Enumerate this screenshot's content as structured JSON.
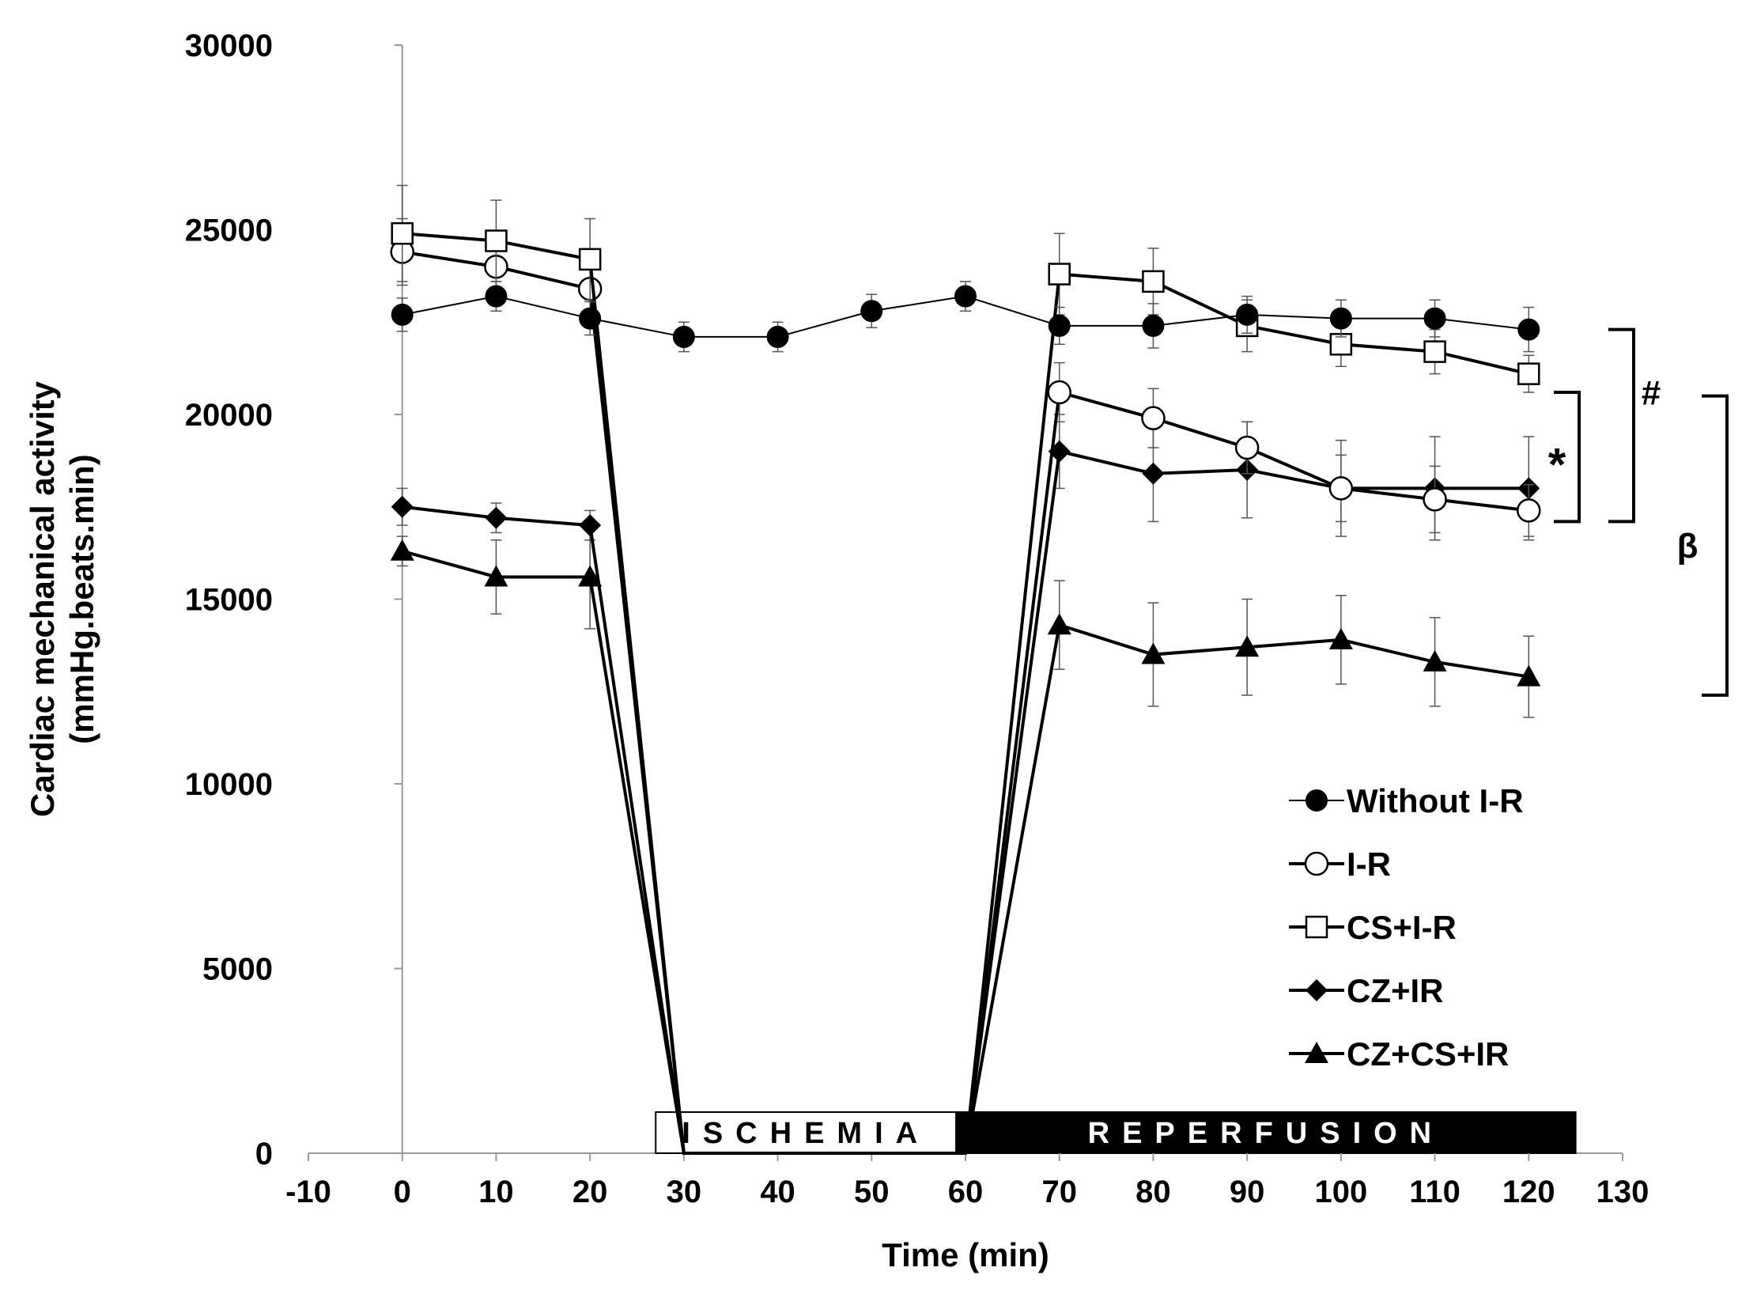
{
  "chart_data": {
    "type": "line",
    "title": "",
    "xlabel": "Time (min)",
    "ylabel_line1": "Cardiac mechanical activity",
    "ylabel_line2": "(mmHg.beats.min)",
    "xlim": [
      -10,
      130
    ],
    "ylim": [
      0,
      30000
    ],
    "xticks": [
      -10,
      0,
      10,
      20,
      30,
      40,
      50,
      60,
      70,
      80,
      90,
      100,
      110,
      120,
      130
    ],
    "yticks": [
      0,
      5000,
      10000,
      15000,
      20000,
      25000,
      30000
    ],
    "grid": false,
    "legend_position": "bottom-right",
    "phases": [
      {
        "label": "ISCHEMIA",
        "x_start": 27,
        "x_end": 59,
        "fill": "#ffffff",
        "text_color": "#000000"
      },
      {
        "label": "REPERFUSION",
        "x_start": 59,
        "x_end": 125,
        "fill": "#000000",
        "text_color": "#ffffff"
      }
    ],
    "series": [
      {
        "name": "Without I-R",
        "marker": "circle-filled",
        "stroke_width": 2,
        "x": [
          0,
          10,
          20,
          30,
          40,
          50,
          60,
          70,
          80,
          90,
          100,
          110,
          120
        ],
        "values": [
          22700,
          23200,
          22600,
          22100,
          22100,
          22800,
          23200,
          22400,
          22400,
          22700,
          22600,
          22600,
          22300
        ],
        "errors": [
          450,
          400,
          450,
          400,
          400,
          450,
          400,
          500,
          600,
          500,
          500,
          500,
          600
        ]
      },
      {
        "name": "I-R",
        "marker": "circle-open",
        "stroke_width": 4,
        "x": [
          0,
          10,
          20,
          30,
          60,
          70,
          80,
          90,
          100,
          110,
          120
        ],
        "values": [
          24400,
          24000,
          23400,
          0,
          0,
          20600,
          19900,
          19100,
          18000,
          17700,
          17400
        ],
        "errors": [
          900,
          800,
          900,
          0,
          0,
          800,
          800,
          700,
          900,
          900,
          700
        ]
      },
      {
        "name": "CS+I-R",
        "marker": "square-open",
        "stroke_width": 4,
        "x": [
          0,
          10,
          20,
          30,
          60,
          70,
          80,
          90,
          100,
          110,
          120
        ],
        "values": [
          24900,
          24700,
          24200,
          0,
          0,
          23800,
          23600,
          22400,
          21900,
          21700,
          21100
        ],
        "errors": [
          1300,
          1100,
          1100,
          0,
          0,
          1100,
          900,
          700,
          600,
          600,
          500
        ]
      },
      {
        "name": "CZ+IR",
        "marker": "diamond-filled",
        "stroke_width": 4,
        "x": [
          0,
          10,
          20,
          30,
          60,
          70,
          80,
          90,
          100,
          110,
          120
        ],
        "values": [
          17500,
          17200,
          17000,
          0,
          0,
          19000,
          18400,
          18500,
          18000,
          18000,
          18000
        ],
        "errors": [
          500,
          400,
          400,
          0,
          0,
          1000,
          1300,
          1300,
          1300,
          1400,
          1400
        ]
      },
      {
        "name": "CZ+CS+IR",
        "marker": "triangle-filled",
        "stroke_width": 4,
        "x": [
          0,
          10,
          20,
          30,
          60,
          70,
          80,
          90,
          100,
          110,
          120
        ],
        "values": [
          16300,
          15600,
          15600,
          0,
          0,
          14300,
          13500,
          13700,
          13900,
          13300,
          12900
        ],
        "errors": [
          400,
          1000,
          1400,
          0,
          0,
          1200,
          1400,
          1300,
          1200,
          1200,
          1100
        ]
      }
    ],
    "significance_brackets": [
      {
        "label": "#",
        "y_top": 22300,
        "y_bottom": 17100,
        "offset": 2
      },
      {
        "label": "*",
        "y_top": 20600,
        "y_bottom": 17100,
        "offset": 1
      },
      {
        "label": "β",
        "y_top": 20500,
        "y_bottom": 12400,
        "offset": 3
      }
    ]
  }
}
